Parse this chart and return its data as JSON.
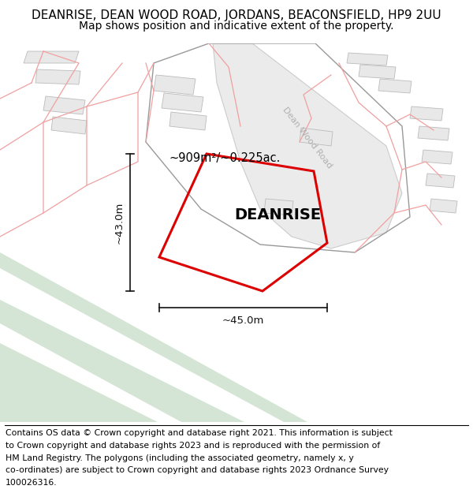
{
  "title_line1": "DEANRISE, DEAN WOOD ROAD, JORDANS, BEACONSFIELD, HP9 2UU",
  "title_line2": "Map shows position and indicative extent of the property.",
  "footer_lines": [
    "Contains OS data © Crown copyright and database right 2021. This information is subject",
    "to Crown copyright and database rights 2023 and is reproduced with the permission of",
    "HM Land Registry. The polygons (including the associated geometry, namely x, y",
    "co-ordinates) are subject to Crown copyright and database rights 2023 Ordnance Survey",
    "100026316."
  ],
  "map_bg": "#ffffff",
  "building_fill": "#e8e8e8",
  "building_edge": "#bbbbbb",
  "green_fill": "#d5e5d5",
  "road_fill": "#ebebeb",
  "road_edge": "#cccccc",
  "pink_color": "#f0a0a0",
  "red_color": "#dd0000",
  "dim_color": "#111111",
  "road_label_color": "#b0b0b0",
  "plot_name": "DEANRISE",
  "area_label": "~909m²/~0.225ac.",
  "width_label": "~45.0m",
  "height_label": "~43.0m",
  "road_label": "Dean Wood Road",
  "title_fontsize": 11,
  "subtitle_fontsize": 10,
  "footer_fontsize": 7.8,
  "plot_fontsize": 14,
  "area_fontsize": 10.5,
  "dim_fontsize": 9.5
}
